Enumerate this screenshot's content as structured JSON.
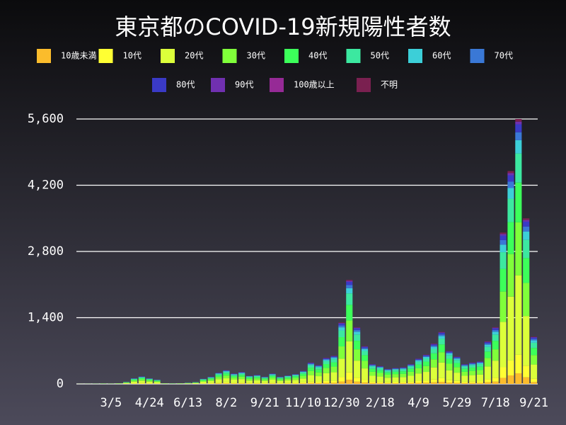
{
  "chart_data": {
    "type": "stacked-bar",
    "title": "東京都のCOVID-19新規陽性者数",
    "categories": [
      null,
      null,
      null,
      null,
      "3/5",
      null,
      null,
      null,
      null,
      "4/24",
      null,
      null,
      null,
      null,
      "6/13",
      null,
      null,
      null,
      null,
      "8/2",
      null,
      null,
      null,
      null,
      "9/21",
      null,
      null,
      null,
      null,
      "11/10",
      null,
      null,
      null,
      null,
      "12/30",
      null,
      null,
      null,
      null,
      "2/18",
      null,
      null,
      null,
      null,
      "4/9",
      null,
      null,
      null,
      null,
      "5/29",
      null,
      null,
      null,
      null,
      "7/18",
      null,
      null,
      null,
      null,
      "9/21"
    ],
    "ylim": [
      0,
      5600
    ],
    "yticks": [
      0,
      {
        "value": 1400,
        "label": "1,400"
      },
      {
        "value": 2800,
        "label": "2,800"
      },
      {
        "value": 4200,
        "label": "4,200"
      },
      {
        "value": 5600,
        "label": "5,600"
      }
    ],
    "grid": true,
    "series": [
      {
        "name": "10歳未満",
        "color": "#fbbc2c",
        "values": [
          0,
          0,
          0,
          0,
          0,
          1,
          2,
          5,
          6,
          5,
          4,
          1,
          0,
          1,
          1,
          2,
          4,
          6,
          10,
          12,
          9,
          10,
          7,
          8,
          6,
          9,
          6,
          7,
          8,
          11,
          18,
          16,
          22,
          24,
          52,
          88,
          48,
          32,
          17,
          15,
          13,
          14,
          14,
          17,
          22,
          25,
          34,
          44,
          28,
          23,
          17,
          18,
          19,
          36,
          48,
          128,
          180,
          224,
          140,
          40
        ]
      },
      {
        "name": "10代",
        "color": "#ffff33",
        "values": [
          0,
          0,
          0,
          1,
          1,
          1,
          3,
          8,
          11,
          8,
          6,
          1,
          1,
          1,
          2,
          3,
          8,
          11,
          17,
          20,
          15,
          18,
          12,
          13,
          11,
          15,
          11,
          13,
          15,
          20,
          32,
          28,
          39,
          42,
          91,
          154,
          84,
          56,
          29,
          27,
          22,
          24,
          25,
          29,
          38,
          43,
          60,
          77,
          49,
          41,
          29,
          32,
          34,
          63,
          84,
          224,
          315,
          392,
          245,
          70
        ]
      },
      {
        "name": "20代",
        "color": "#dcff3a",
        "values": [
          1,
          1,
          2,
          3,
          2,
          5,
          14,
          36,
          48,
          36,
          27,
          5,
          3,
          5,
          8,
          12,
          33,
          45,
          72,
          87,
          66,
          75,
          51,
          57,
          45,
          66,
          45,
          54,
          63,
          84,
          135,
          120,
          165,
          180,
          390,
          660,
          360,
          240,
          126,
          114,
          96,
          102,
          105,
          126,
          162,
          186,
          255,
          330,
          210,
          174,
          126,
          135,
          144,
          270,
          360,
          960,
          1350,
          1680,
          1050,
          300
        ]
      },
      {
        "name": "30代",
        "color": "#80ff3a",
        "values": [
          1,
          1,
          1,
          2,
          2,
          3,
          9,
          24,
          32,
          24,
          18,
          3,
          2,
          3,
          5,
          8,
          22,
          30,
          48,
          58,
          44,
          50,
          34,
          38,
          30,
          44,
          30,
          36,
          42,
          56,
          90,
          80,
          110,
          120,
          260,
          440,
          240,
          160,
          84,
          76,
          64,
          68,
          70,
          84,
          108,
          124,
          170,
          220,
          140,
          116,
          84,
          90,
          96,
          180,
          240,
          640,
          900,
          1120,
          700,
          200
        ]
      },
      {
        "name": "40代",
        "color": "#3cff5a",
        "values": [
          0,
          1,
          1,
          2,
          1,
          2,
          7,
          18,
          24,
          18,
          14,
          2,
          2,
          2,
          4,
          6,
          17,
          23,
          36,
          44,
          33,
          38,
          26,
          29,
          23,
          33,
          23,
          27,
          32,
          42,
          68,
          60,
          83,
          90,
          195,
          330,
          180,
          120,
          63,
          57,
          48,
          51,
          53,
          63,
          81,
          93,
          128,
          165,
          105,
          87,
          63,
          68,
          72,
          135,
          180,
          480,
          675,
          840,
          525,
          150
        ]
      },
      {
        "name": "50代",
        "color": "#3ce8a0",
        "values": [
          0,
          0,
          1,
          1,
          1,
          2,
          5,
          13,
          18,
          13,
          10,
          2,
          1,
          2,
          3,
          4,
          12,
          17,
          26,
          32,
          24,
          28,
          19,
          21,
          17,
          24,
          17,
          20,
          23,
          31,
          50,
          44,
          61,
          66,
          143,
          242,
          132,
          88,
          46,
          42,
          35,
          37,
          39,
          46,
          59,
          68,
          94,
          121,
          77,
          64,
          46,
          50,
          53,
          99,
          132,
          352,
          495,
          616,
          385,
          110
        ]
      },
      {
        "name": "60代",
        "color": "#3ccfd8",
        "values": [
          0,
          0,
          0,
          0,
          0,
          1,
          2,
          6,
          8,
          6,
          5,
          1,
          1,
          1,
          1,
          2,
          6,
          8,
          12,
          15,
          11,
          13,
          9,
          10,
          8,
          11,
          8,
          9,
          11,
          14,
          23,
          20,
          28,
          30,
          65,
          110,
          60,
          40,
          21,
          19,
          16,
          17,
          18,
          21,
          27,
          31,
          43,
          55,
          35,
          29,
          21,
          23,
          24,
          45,
          60,
          160,
          225,
          280,
          175,
          50
        ]
      },
      {
        "name": "70代",
        "color": "#3a78d6",
        "values": [
          0,
          0,
          0,
          0,
          0,
          0,
          1,
          4,
          5,
          4,
          3,
          0,
          0,
          0,
          1,
          1,
          3,
          5,
          7,
          9,
          7,
          8,
          5,
          6,
          5,
          7,
          5,
          5,
          6,
          8,
          14,
          12,
          17,
          18,
          39,
          66,
          36,
          24,
          13,
          11,
          10,
          10,
          11,
          13,
          16,
          19,
          26,
          33,
          21,
          17,
          13,
          14,
          14,
          27,
          36,
          96,
          135,
          168,
          105,
          30
        ]
      },
      {
        "name": "80代",
        "color": "#3a3ac6",
        "values": [
          0,
          0,
          0,
          0,
          0,
          0,
          1,
          4,
          5,
          4,
          3,
          0,
          0,
          0,
          1,
          1,
          3,
          5,
          7,
          9,
          7,
          8,
          5,
          6,
          5,
          7,
          5,
          5,
          6,
          8,
          14,
          12,
          17,
          18,
          39,
          66,
          36,
          24,
          13,
          11,
          10,
          10,
          11,
          13,
          16,
          19,
          26,
          33,
          21,
          17,
          13,
          14,
          14,
          27,
          36,
          96,
          135,
          168,
          105,
          30
        ]
      },
      {
        "name": "90代",
        "color": "#7030b0",
        "values": [
          0,
          0,
          0,
          0,
          0,
          0,
          0,
          1,
          2,
          1,
          1,
          0,
          0,
          0,
          0,
          0,
          1,
          2,
          2,
          3,
          2,
          3,
          2,
          2,
          2,
          2,
          2,
          2,
          2,
          3,
          5,
          4,
          6,
          6,
          13,
          22,
          12,
          8,
          4,
          4,
          3,
          3,
          4,
          4,
          5,
          6,
          9,
          11,
          7,
          6,
          4,
          5,
          5,
          9,
          12,
          32,
          45,
          56,
          35,
          10
        ]
      },
      {
        "name": "100歳以上",
        "color": "#962a96",
        "values": [
          0,
          0,
          0,
          0,
          0,
          0,
          0,
          0,
          0,
          0,
          0,
          0,
          0,
          0,
          0,
          0,
          0,
          0,
          0,
          0,
          0,
          0,
          0,
          0,
          0,
          0,
          0,
          0,
          0,
          0,
          0,
          0,
          0,
          0,
          0,
          0,
          0,
          0,
          0,
          0,
          0,
          0,
          0,
          0,
          0,
          0,
          0,
          0,
          0,
          0,
          0,
          0,
          0,
          0,
          0,
          0,
          0,
          0,
          0,
          0
        ]
      },
      {
        "name": "不明",
        "color": "#7a2050",
        "values": [
          0,
          0,
          0,
          0,
          0,
          0,
          0,
          1,
          2,
          1,
          1,
          0,
          0,
          0,
          0,
          0,
          1,
          2,
          2,
          3,
          2,
          3,
          2,
          2,
          2,
          2,
          2,
          2,
          2,
          3,
          5,
          4,
          6,
          6,
          13,
          22,
          12,
          8,
          4,
          4,
          3,
          3,
          4,
          4,
          5,
          6,
          9,
          11,
          7,
          6,
          4,
          5,
          5,
          9,
          12,
          32,
          45,
          56,
          35,
          10
        ]
      }
    ]
  }
}
